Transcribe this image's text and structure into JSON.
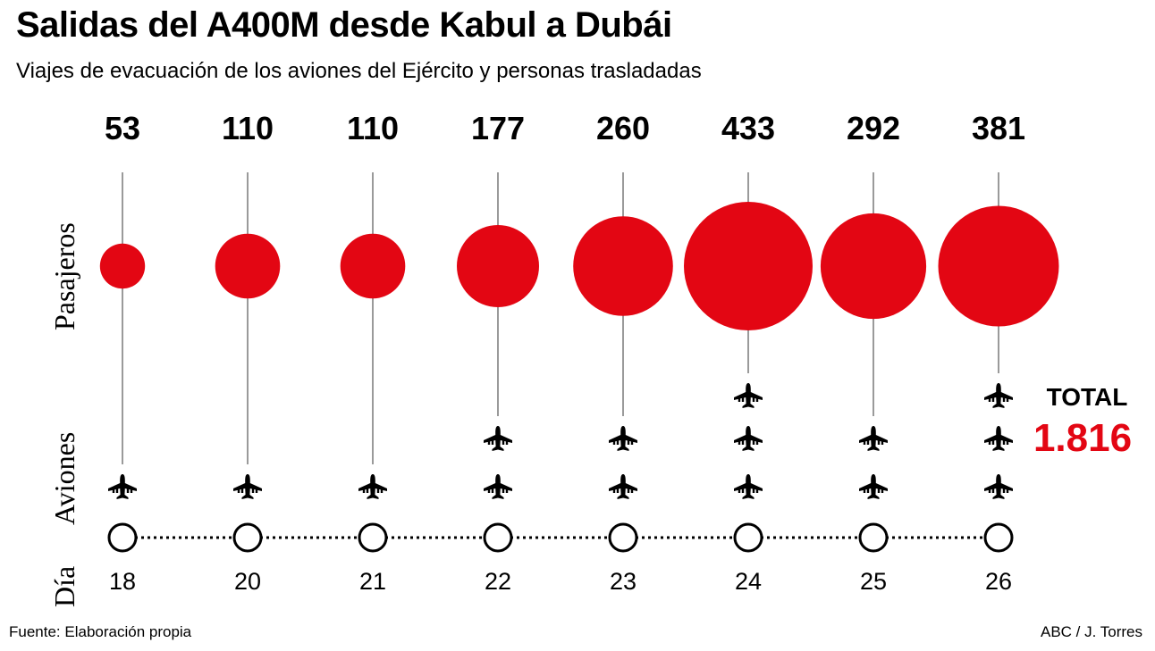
{
  "title": "Salidas del A400M desde Kabul a Dubái",
  "subtitle": "Viajes de evacuación de los aviones del Ejército y personas trasladadas",
  "source": "Fuente: Elaboración propia",
  "credit": "ABC / J. Torres",
  "row_labels": {
    "passengers": "Pasajeros",
    "planes": "Aviones",
    "day": "Día"
  },
  "total": {
    "label": "TOTAL",
    "value": "1.816"
  },
  "colors": {
    "bubble": "#e30613",
    "total": "#e30613",
    "stem": "#9a9a9a"
  },
  "icons": {
    "plane": "airplane-icon",
    "day_marker": "circle-icon"
  },
  "chart_data": {
    "type": "bubble",
    "x": [
      "18",
      "20",
      "21",
      "22",
      "23",
      "24",
      "25",
      "26"
    ],
    "series": [
      {
        "name": "Pasajeros",
        "values": [
          53,
          110,
          110,
          177,
          260,
          433,
          292,
          381
        ]
      },
      {
        "name": "Aviones",
        "values": [
          1,
          1,
          1,
          2,
          2,
          3,
          2,
          3
        ]
      }
    ],
    "value_labels": [
      "53",
      "110",
      "110",
      "177",
      "260",
      "433",
      "292",
      "381"
    ]
  }
}
